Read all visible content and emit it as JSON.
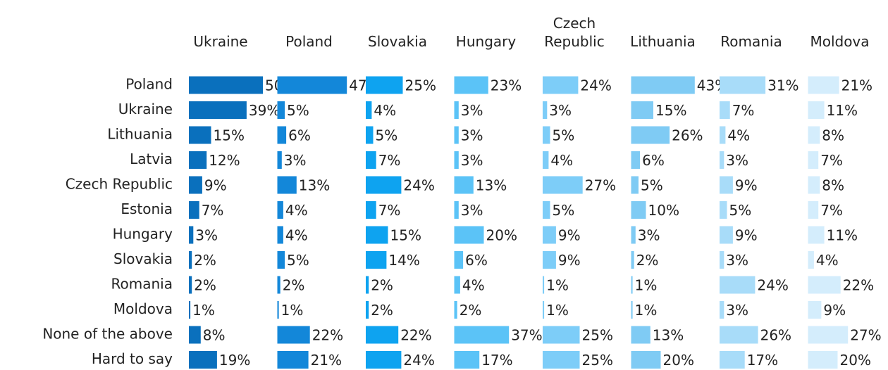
{
  "chart_data": {
    "type": "bar",
    "categories": [
      "Poland",
      "Ukraine",
      "Lithuania",
      "Latvia",
      "Czech Republic",
      "Estonia",
      "Hungary",
      "Slovakia",
      "Romania",
      "Moldova",
      "None of the above",
      "Hard to say"
    ],
    "series": [
      {
        "name": "Ukraine",
        "color": "#0a70bd",
        "values": [
          50,
          39,
          15,
          12,
          9,
          7,
          3,
          2,
          2,
          1,
          8,
          19
        ],
        "value_labels": [
          "50%",
          "39%",
          "15%",
          "12%",
          "9%",
          "7%",
          "3%",
          "2%",
          "2%",
          "1%",
          "8%",
          "19%"
        ]
      },
      {
        "name": "Poland",
        "color": "#1387d9",
        "values": [
          47,
          5,
          6,
          3,
          13,
          4,
          4,
          5,
          2,
          1,
          22,
          21
        ],
        "value_labels": [
          "47%",
          "5%",
          "6%",
          "3%",
          "13%",
          "4%",
          "4%",
          "5%",
          "2%",
          "1%",
          "22%",
          "21%"
        ]
      },
      {
        "name": "Slovakia",
        "color": "#0ea3f0",
        "values": [
          25,
          4,
          5,
          7,
          24,
          7,
          15,
          14,
          2,
          2,
          22,
          24
        ],
        "value_labels": [
          "25%",
          "4%",
          "5%",
          "7%",
          "24%",
          "7%",
          "15%",
          "14%",
          "2%",
          "2%",
          "22%",
          "24%"
        ]
      },
      {
        "name": "Hungary",
        "color": "#5bc3f7",
        "values": [
          23,
          3,
          3,
          3,
          13,
          3,
          20,
          6,
          4,
          2,
          37,
          17
        ],
        "value_labels": [
          "23%",
          "3%",
          "3%",
          "3%",
          "13%",
          "3%",
          "20%",
          "6%",
          "4%",
          "2%",
          "37%",
          "17%"
        ]
      },
      {
        "name": "Czech Republic",
        "color": "#7dcdf8",
        "values": [
          24,
          3,
          5,
          4,
          27,
          5,
          9,
          9,
          1,
          1,
          25,
          25
        ],
        "value_labels": [
          "24%",
          "3%",
          "5%",
          "4%",
          "27%",
          "5%",
          "9%",
          "9%",
          "1%",
          "1%",
          "25%",
          "25%"
        ]
      },
      {
        "name": "Lithuania",
        "color": "#7fcbf4",
        "values": [
          43,
          15,
          26,
          6,
          5,
          10,
          3,
          2,
          1,
          1,
          13,
          20
        ],
        "value_labels": [
          "43%",
          "15%",
          "26%",
          "6%",
          "5%",
          "10%",
          "3%",
          "2%",
          "1%",
          "1%",
          "13%",
          "20%"
        ]
      },
      {
        "name": "Romania",
        "color": "#a8dcf9",
        "values": [
          31,
          7,
          4,
          3,
          9,
          5,
          9,
          3,
          24,
          3,
          26,
          17
        ],
        "value_labels": [
          "31%",
          "7%",
          "4%",
          "3%",
          "9%",
          "5%",
          "9%",
          "3%",
          "24%",
          "3%",
          "26%",
          "17%"
        ]
      },
      {
        "name": "Moldova",
        "color": "#d4edfc",
        "values": [
          21,
          11,
          8,
          7,
          8,
          7,
          11,
          4,
          22,
          9,
          27,
          20
        ],
        "value_labels": [
          "21%",
          "11%",
          "8%",
          "7%",
          "8%",
          "7%",
          "11%",
          "4%",
          "22%",
          "9%",
          "27%",
          "20%"
        ]
      }
    ]
  }
}
